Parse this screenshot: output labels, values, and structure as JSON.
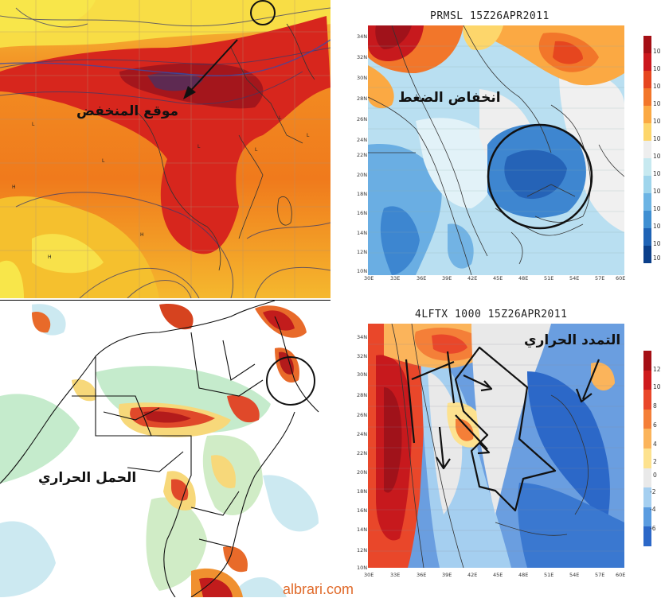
{
  "panels": {
    "top_left": {
      "label": "موقع المنخفض"
    },
    "top_right": {
      "title": "PRMSL  15Z26APR2011",
      "label": "انخفاض الضغط",
      "y_ticks": [
        "34N",
        "32N",
        "30N",
        "28N",
        "26N",
        "24N",
        "22N",
        "20N",
        "18N",
        "16N",
        "14N",
        "12N",
        "10N"
      ],
      "x_ticks": [
        "30E",
        "33E",
        "36E",
        "39E",
        "42E",
        "45E",
        "48E",
        "51E",
        "54E",
        "57E",
        "60E"
      ],
      "colorbar_labels": [
        "10",
        "10",
        "10",
        "10",
        "10",
        "10",
        "10",
        "10",
        "10",
        "10",
        "10",
        "10",
        "10"
      ],
      "colorbar_colors": [
        "#a50f15",
        "#cb181d",
        "#e6461f",
        "#f2762a",
        "#fba943",
        "#fdd66b",
        "#eeeeee",
        "#c7e9f0",
        "#9fd5ec",
        "#6cb4e4",
        "#3f8fd2",
        "#1f63b5",
        "#0b3f8a"
      ]
    },
    "bottom_left": {
      "label": "الحمل الحراري"
    },
    "bottom_right": {
      "title": "4LFTX  1000  15Z26APR2011",
      "label": "التمدد الحراري",
      "y_ticks": [
        "34N",
        "32N",
        "30N",
        "28N",
        "26N",
        "24N",
        "22N",
        "20N",
        "18N",
        "16N",
        "14N",
        "12N",
        "10N"
      ],
      "x_ticks": [
        "30E",
        "33E",
        "36E",
        "39E",
        "42E",
        "45E",
        "48E",
        "51E",
        "54E",
        "57E",
        "60E"
      ],
      "colorbar_labels": [
        "12",
        "10",
        "8",
        "6",
        "4",
        "2",
        "0",
        "-2",
        "-4",
        "-6"
      ],
      "colorbar_colors": [
        "#a50f15",
        "#cf1b1d",
        "#e9472a",
        "#f47f38",
        "#fbb45b",
        "#fde28f",
        "#e9e9e9",
        "#a5cff0",
        "#5a9ce0",
        "#2c68c8"
      ]
    }
  },
  "watermark": "albrari.com"
}
